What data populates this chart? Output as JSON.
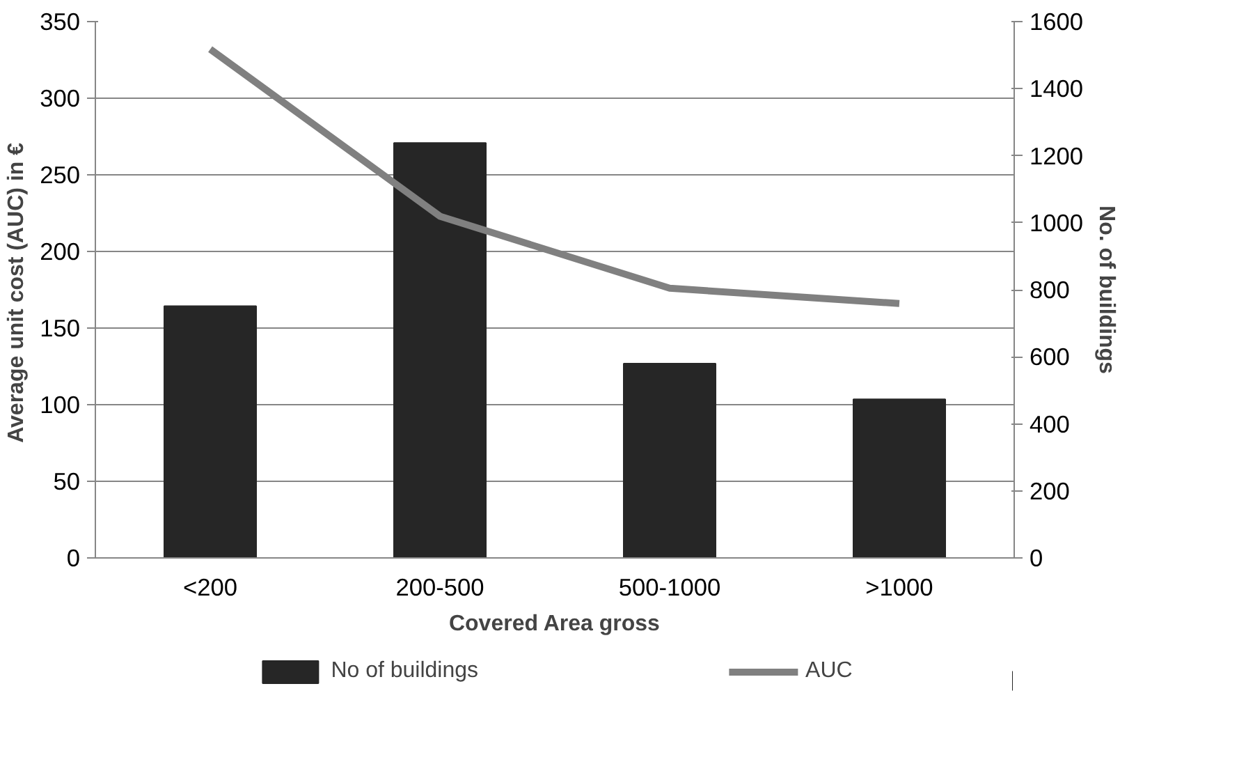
{
  "chart_data": {
    "type": "bar",
    "xlabel": "Covered Area gross",
    "ylabel": "Average unit  cost (AUC) in €",
    "y2label": "No. of buildings",
    "categories": [
      "<200",
      "200-500",
      "500-1000",
      ">1000"
    ],
    "series": [
      {
        "name": "No of buildings",
        "axis": "y2",
        "color": "#262626",
        "values": [
          751,
          1238,
          580,
          473
        ]
      },
      {
        "name": "AUC",
        "type": "line",
        "axis": "y",
        "color": "#808080",
        "values": [
          332,
          223,
          176,
          166
        ]
      }
    ],
    "ylim": [
      0,
      350
    ],
    "yticks": [
      0,
      50,
      100,
      150,
      200,
      250,
      300,
      350
    ],
    "y2lim": [
      0,
      1600
    ],
    "y2ticks": [
      0,
      200,
      400,
      600,
      800,
      1000,
      1200,
      1400,
      1600
    ],
    "grid": "y",
    "legend": "bottom",
    "marker": "none",
    "line_style": "solid"
  }
}
